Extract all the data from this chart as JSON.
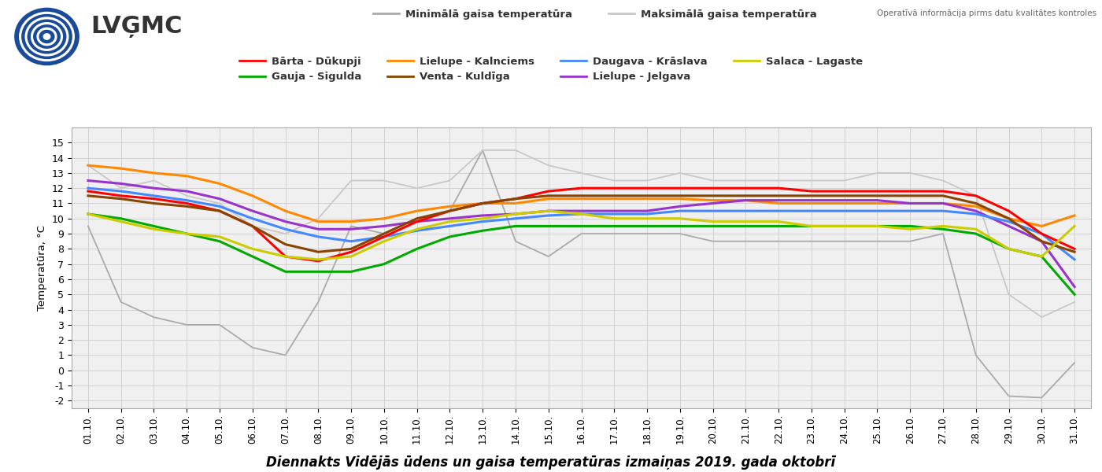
{
  "title": "Diennakts Vidējās ūdens un gaisa temperatūras izmaiņas 2019. gada oktobrī",
  "ylabel": "Temperatūra, °C",
  "watermark": "Operatīvā informācija pirms datu kvalitātes kontroles",
  "x_labels": [
    "01.10.",
    "02.10.",
    "03.10.",
    "04.10.",
    "05.10.",
    "06.10.",
    "07.10.",
    "08.10.",
    "09.10.",
    "10.10.",
    "11.10.",
    "12.10.",
    "13.10.",
    "14.10.",
    "15.10.",
    "16.10.",
    "17.10.",
    "18.10.",
    "19.10.",
    "20.10.",
    "21.10.",
    "22.10.",
    "23.10.",
    "24.10.",
    "25.10.",
    "26.10.",
    "27.10.",
    "28.10.",
    "29.10.",
    "30.10.",
    "31.10."
  ],
  "ylim": [
    -2.5,
    16.0
  ],
  "yticks": [
    -2,
    -1,
    0,
    1,
    2,
    3,
    4,
    5,
    6,
    7,
    8,
    9,
    10,
    11,
    12,
    13,
    14,
    15
  ],
  "series": {
    "min_air": {
      "label": "Minimālā gaisa temperatūra",
      "color": "#aaaaaa",
      "lw": 1.3,
      "data": [
        9.5,
        4.5,
        3.5,
        3.0,
        3.0,
        1.5,
        1.0,
        4.5,
        9.5,
        9.0,
        10.0,
        10.5,
        14.5,
        8.5,
        7.5,
        9.0,
        9.0,
        9.0,
        9.0,
        8.5,
        8.5,
        8.5,
        8.5,
        8.5,
        8.5,
        8.5,
        9.0,
        1.0,
        -1.7,
        -1.8,
        0.5
      ]
    },
    "max_air": {
      "label": "Maksimālā gaisa temperatūra",
      "color": "#c8c8c8",
      "lw": 1.3,
      "data": [
        13.5,
        12.0,
        12.5,
        11.5,
        11.0,
        9.5,
        9.0,
        10.0,
        12.5,
        12.5,
        12.0,
        12.5,
        14.5,
        14.5,
        13.5,
        13.0,
        12.5,
        12.5,
        13.0,
        12.5,
        12.5,
        12.5,
        12.5,
        12.5,
        13.0,
        13.0,
        12.5,
        11.5,
        5.0,
        3.5,
        4.5
      ]
    },
    "lielupe_k": {
      "label": "Lielupe - Kalnciems",
      "color": "#ff8800",
      "lw": 2.2,
      "data": [
        13.5,
        13.3,
        13.0,
        12.8,
        12.3,
        11.5,
        10.5,
        9.8,
        9.8,
        10.0,
        10.5,
        10.8,
        11.0,
        11.0,
        11.3,
        11.3,
        11.3,
        11.3,
        11.3,
        11.2,
        11.2,
        11.0,
        11.0,
        11.0,
        11.0,
        11.0,
        11.0,
        10.8,
        10.0,
        9.5,
        10.2
      ]
    },
    "lielupe_j": {
      "label": "Lielupe - Jelgava",
      "color": "#9933cc",
      "lw": 2.2,
      "data": [
        12.5,
        12.3,
        12.0,
        11.8,
        11.3,
        10.5,
        9.8,
        9.3,
        9.3,
        9.5,
        9.8,
        10.0,
        10.2,
        10.3,
        10.5,
        10.5,
        10.5,
        10.5,
        10.8,
        11.0,
        11.2,
        11.2,
        11.2,
        11.2,
        11.2,
        11.0,
        11.0,
        10.5,
        9.5,
        8.5,
        5.5
      ]
    },
    "daugava": {
      "label": "Daugava - Krāslava",
      "color": "#4488ff",
      "lw": 2.2,
      "data": [
        12.0,
        11.8,
        11.5,
        11.2,
        10.8,
        10.0,
        9.3,
        8.8,
        8.5,
        8.8,
        9.2,
        9.5,
        9.8,
        10.0,
        10.2,
        10.3,
        10.3,
        10.3,
        10.5,
        10.5,
        10.5,
        10.5,
        10.5,
        10.5,
        10.5,
        10.5,
        10.5,
        10.3,
        9.8,
        9.0,
        7.3
      ]
    },
    "barta": {
      "label": "Bārta - Dūkupji",
      "color": "#ff0000",
      "lw": 2.2,
      "data": [
        11.8,
        11.5,
        11.3,
        11.0,
        10.5,
        9.5,
        7.5,
        7.2,
        7.8,
        8.8,
        9.8,
        10.5,
        11.0,
        11.3,
        11.8,
        12.0,
        12.0,
        12.0,
        12.0,
        12.0,
        12.0,
        12.0,
        11.8,
        11.8,
        11.8,
        11.8,
        11.8,
        11.5,
        10.5,
        9.0,
        8.0
      ]
    },
    "venta": {
      "label": "Venta - Kuldīga",
      "color": "#884400",
      "lw": 2.2,
      "data": [
        11.5,
        11.3,
        11.0,
        10.8,
        10.5,
        9.5,
        8.3,
        7.8,
        8.0,
        9.0,
        10.0,
        10.5,
        11.0,
        11.3,
        11.5,
        11.5,
        11.5,
        11.5,
        11.5,
        11.5,
        11.5,
        11.5,
        11.5,
        11.5,
        11.5,
        11.5,
        11.5,
        11.0,
        10.0,
        8.5,
        7.8
      ]
    },
    "gauja": {
      "label": "Gauja - Sigulda",
      "color": "#00aa00",
      "lw": 2.2,
      "data": [
        10.3,
        10.0,
        9.5,
        9.0,
        8.5,
        7.5,
        6.5,
        6.5,
        6.5,
        7.0,
        8.0,
        8.8,
        9.2,
        9.5,
        9.5,
        9.5,
        9.5,
        9.5,
        9.5,
        9.5,
        9.5,
        9.5,
        9.5,
        9.5,
        9.5,
        9.5,
        9.3,
        9.0,
        8.0,
        7.5,
        5.0
      ]
    },
    "salaca": {
      "label": "Salaca - Lagaste",
      "color": "#cccc00",
      "lw": 2.2,
      "data": [
        10.3,
        9.8,
        9.3,
        9.0,
        8.8,
        8.0,
        7.5,
        7.3,
        7.5,
        8.5,
        9.3,
        9.8,
        10.0,
        10.3,
        10.5,
        10.3,
        10.0,
        10.0,
        10.0,
        9.8,
        9.8,
        9.8,
        9.5,
        9.5,
        9.5,
        9.3,
        9.5,
        9.3,
        8.0,
        7.5,
        9.5
      ]
    }
  },
  "background_color": "#f0f0f0",
  "grid_color": "#cccccc"
}
